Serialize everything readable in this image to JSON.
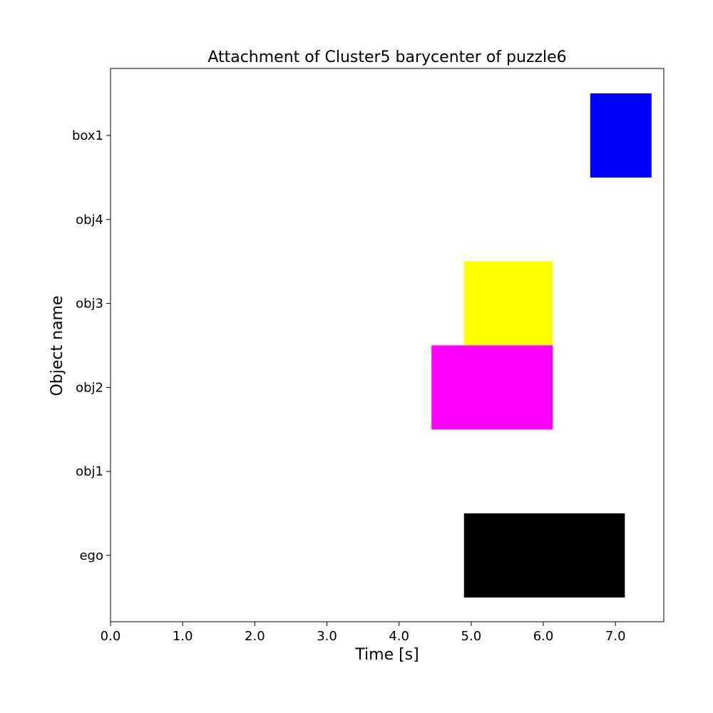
{
  "chart_data": {
    "type": "bar",
    "orientation": "horizontal-timeline",
    "title": "Attachment of Cluster5 barycenter of puzzle6",
    "xlabel": "Time [s]",
    "ylabel": "Object name",
    "xlim": [
      0,
      7.67
    ],
    "x_ticks": [
      "0.0",
      "1.0",
      "2.0",
      "3.0",
      "4.0",
      "5.0",
      "6.0",
      "7.0"
    ],
    "categories": [
      "ego",
      "obj1",
      "obj2",
      "obj3",
      "obj4",
      "box1"
    ],
    "intervals": [
      {
        "category": "box1",
        "start": 6.65,
        "end": 7.5,
        "color": "#0000ff"
      },
      {
        "category": "obj3",
        "start": 4.9,
        "end": 6.13,
        "color": "#ffff00"
      },
      {
        "category": "obj2",
        "start": 4.45,
        "end": 6.13,
        "color": "#ff00ff"
      },
      {
        "category": "ego",
        "start": 4.9,
        "end": 7.13,
        "color": "#000000"
      }
    ],
    "grid": false
  }
}
